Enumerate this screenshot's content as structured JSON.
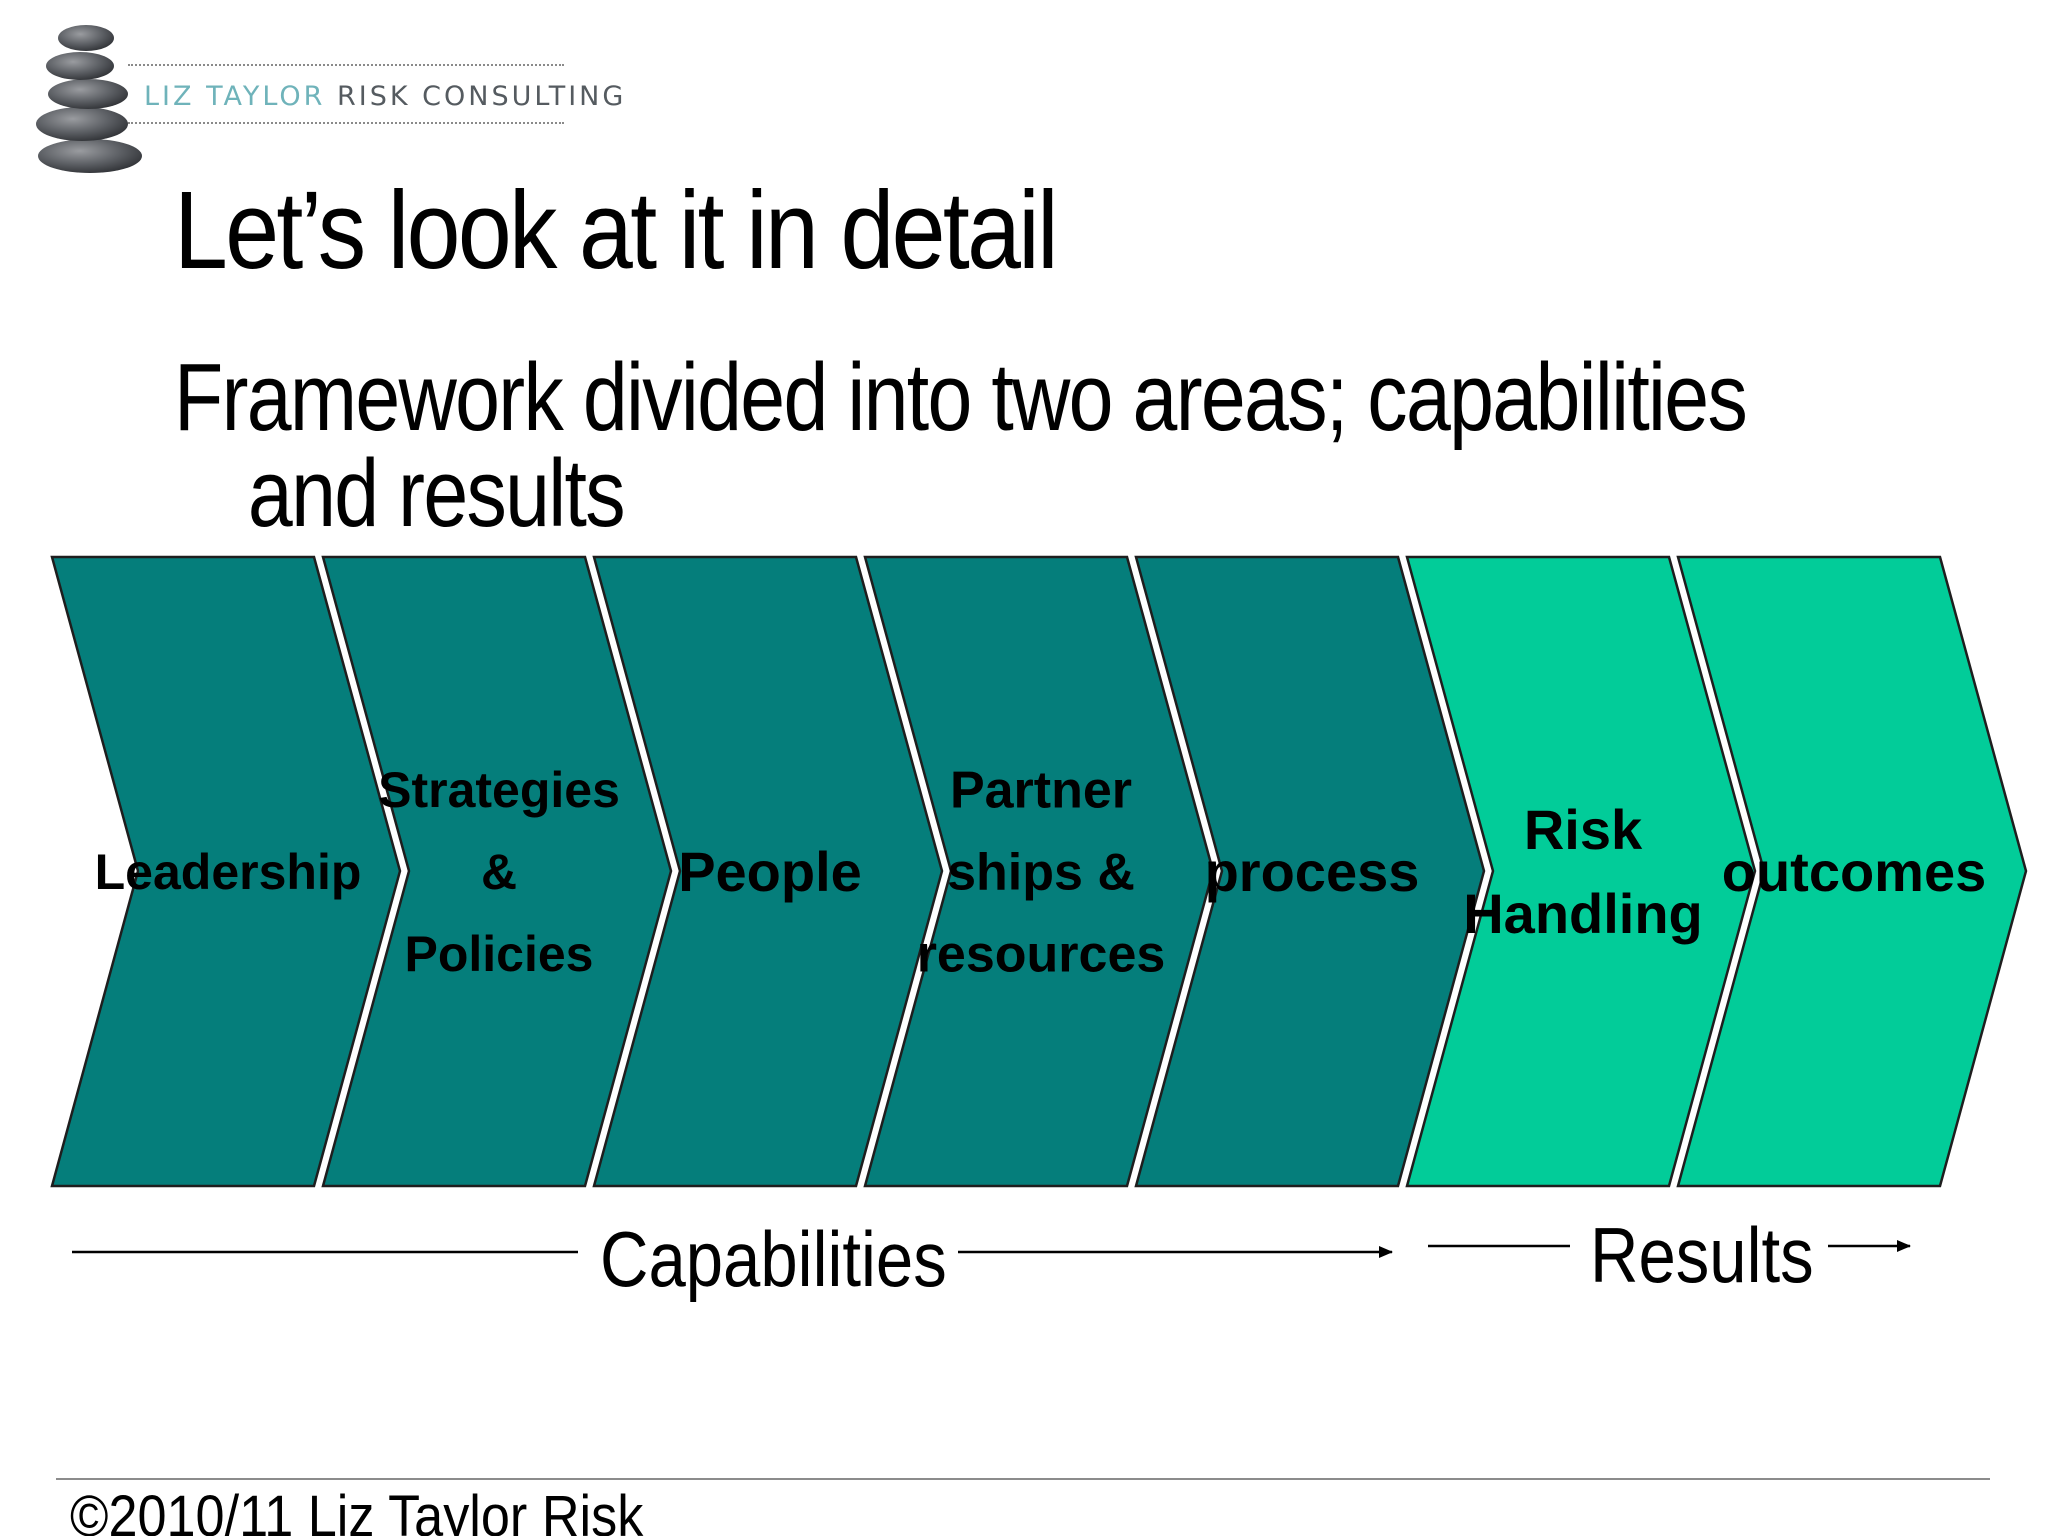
{
  "logo": {
    "name_part": "LIZ TAYLOR",
    "rest_part": " RISK CONSULTING",
    "emblem": "stacked-stones-icon"
  },
  "slide": {
    "title": "Let’s look at it in detail",
    "subtitle_line1": "Framework divided into two areas; capabilities",
    "subtitle_line2": "and results"
  },
  "diagram": {
    "colors": {
      "capabilities": "#057e7b",
      "results": "#02cc99",
      "outline": "#1e1e1e"
    },
    "chevrons": [
      {
        "id": "leadership",
        "group": "capabilities",
        "lines": [
          "Leadership"
        ]
      },
      {
        "id": "strategies-policies",
        "group": "capabilities",
        "lines": [
          "Strategies",
          "&",
          "Policies"
        ]
      },
      {
        "id": "people",
        "group": "capabilities",
        "lines": [
          "People"
        ]
      },
      {
        "id": "partnerships-resources",
        "group": "capabilities",
        "lines": [
          "Partner",
          "ships &",
          "resources"
        ]
      },
      {
        "id": "process",
        "group": "capabilities",
        "lines": [
          "process"
        ]
      },
      {
        "id": "risk-handling",
        "group": "results",
        "lines": [
          "Risk",
          "Handling"
        ]
      },
      {
        "id": "outcomes",
        "group": "results",
        "lines": [
          "outcomes"
        ]
      }
    ]
  },
  "areas": {
    "capabilities_label": "Capabilities",
    "results_label": "Results"
  },
  "footer": {
    "text": "©2010/11 Liz Taylor Risk"
  }
}
